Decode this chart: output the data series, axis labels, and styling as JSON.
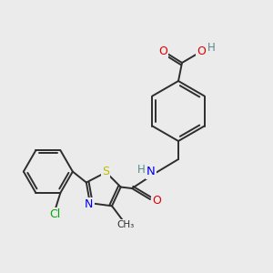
{
  "background_color": "#ebebeb",
  "bond_color": "#2d2d2d",
  "atom_colors": {
    "O": "#dd0000",
    "N": "#0000ee",
    "S": "#bbbb00",
    "Cl": "#00aa00",
    "H": "#558888",
    "C": "#2d2d2d"
  },
  "figsize": [
    3.0,
    3.0
  ],
  "dpi": 100,
  "lw": 1.4
}
